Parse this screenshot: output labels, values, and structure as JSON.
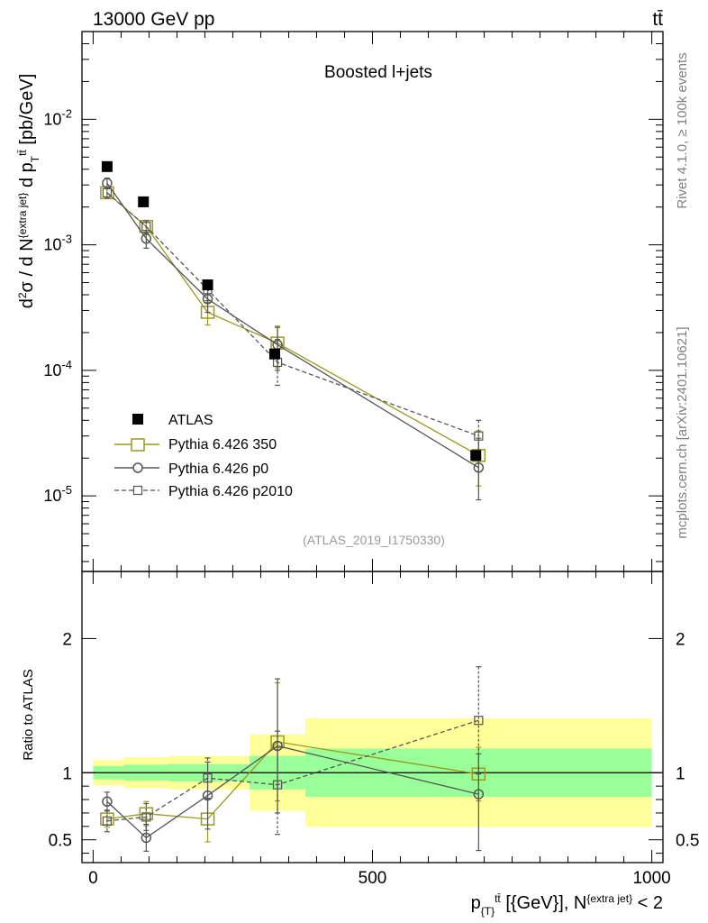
{
  "header": {
    "left": "13000 GeV pp",
    "right": "tt̄"
  },
  "side_labels": {
    "rivet": "Rivet 4.1.0, ≥ 100k events",
    "mcplots": "mcplots.cern.ch [arXiv:2401.10621]"
  },
  "chart_data": [
    {
      "type": "scatter",
      "panel": "main",
      "title": "Boosted l+jets",
      "watermark": "(ATLAS_2019_I1750330)",
      "xlabel": "p_{T}^{t̄t} [{GeV}], N^{extra jet} < 2",
      "ylabel": "d²σ / d N^{extra jet} d p_T^{t̄t} [pb/GeV]",
      "yscale": "log",
      "xlim": [
        -20,
        1020
      ],
      "ylim": [
        2.5e-06,
        0.05
      ],
      "y_ticks": [
        {
          "value": 0.01,
          "base": "10",
          "exp": "-2"
        },
        {
          "value": 0.001,
          "base": "10",
          "exp": "-3"
        },
        {
          "value": 0.0001,
          "base": "10",
          "exp": "-4"
        },
        {
          "value": 1e-05,
          "base": "10",
          "exp": "-5"
        }
      ],
      "legend_position": "lower-left",
      "series": [
        {
          "name": "ATLAS",
          "color": "#000000",
          "marker": "filled-square",
          "line": "none",
          "x": [
            25,
            90,
            205,
            325,
            685
          ],
          "y": [
            0.0042,
            0.0022,
            0.00048,
            0.000135,
            2.1e-05
          ],
          "err_up": [
            0,
            0,
            0,
            0,
            0
          ],
          "err_down": [
            0,
            0,
            0,
            0,
            0
          ]
        },
        {
          "name": "Pythia 6.426 350",
          "color": "#9a9a1e",
          "marker": "open-square",
          "line": "solid",
          "x": [
            25,
            95,
            205,
            330,
            690
          ],
          "y": [
            0.0026,
            0.0014,
            0.00029,
            0.000165,
            2.1e-05
          ],
          "err_up": [
            0.0002,
            0.00017,
            6e-05,
            6e-05,
            1.2e-05
          ],
          "err_down": [
            0.0002,
            0.00017,
            6e-05,
            6e-05,
            9e-06
          ]
        },
        {
          "name": "Pythia 6.426 p0",
          "color": "#555555",
          "marker": "open-circle",
          "line": "solid",
          "x": [
            25,
            95,
            205,
            330,
            690
          ],
          "y": [
            0.0031,
            0.00112,
            0.00037,
            0.00016,
            1.68e-05
          ],
          "err_up": [
            0.0003,
            0.00018,
            8e-05,
            6e-05,
            1.2e-05
          ],
          "err_down": [
            0.0003,
            0.00018,
            8e-05,
            6e-05,
            7.5e-06
          ]
        },
        {
          "name": "Pythia 6.426 p2010",
          "color": "#555555",
          "marker": "open-square-small",
          "line": "dashed",
          "x": [
            25,
            95,
            205,
            330,
            690
          ],
          "y": [
            0.0026,
            0.0014,
            0.00044,
            0.000116,
            3e-05
          ],
          "err_up": [
            0.00025,
            0.00015,
            8e-05,
            6e-05,
            1e-05
          ],
          "err_down": [
            0.00025,
            0.00015,
            8e-05,
            4e-05,
            1e-05
          ]
        }
      ]
    },
    {
      "type": "scatter",
      "panel": "ratio",
      "ylabel": "Ratio to ATLAS",
      "xlim": [
        -20,
        1020
      ],
      "ylim": [
        0.33,
        2.5
      ],
      "x_ticks": [
        0,
        500,
        1000
      ],
      "y_ticks": [
        0.5,
        1,
        2
      ],
      "reference_line": 1,
      "bands": [
        {
          "x0": 0,
          "x1": 55,
          "green": [
            0.95,
            1.05
          ],
          "yellow": [
            0.905,
            1.095
          ]
        },
        {
          "x0": 55,
          "x1": 135,
          "green": [
            0.94,
            1.06
          ],
          "yellow": [
            0.885,
            1.115
          ]
        },
        {
          "x0": 135,
          "x1": 280,
          "green": [
            0.935,
            1.065
          ],
          "yellow": [
            0.875,
            1.125
          ]
        },
        {
          "x0": 280,
          "x1": 380,
          "green": [
            0.875,
            1.125
          ],
          "yellow": [
            0.715,
            1.285
          ]
        },
        {
          "x0": 380,
          "x1": 1000,
          "green": [
            0.82,
            1.18
          ],
          "yellow": [
            0.595,
            1.405
          ]
        }
      ],
      "series": [
        {
          "name": "Pythia 6.426 350",
          "color": "#9a9a1e",
          "marker": "open-square",
          "line": "solid",
          "x": [
            25,
            95,
            205,
            330,
            690
          ],
          "y": [
            0.655,
            0.695,
            0.655,
            1.23,
            0.99
          ],
          "err_up": [
            0.06,
            0.09,
            0.15,
            0.44,
            0.2
          ],
          "err_down": [
            0.06,
            0.09,
            0.17,
            0.44,
            0.2
          ]
        },
        {
          "name": "Pythia 6.426 p0",
          "color": "#555555",
          "marker": "open-circle",
          "line": "solid",
          "x": [
            25,
            95,
            205,
            330,
            690
          ],
          "y": [
            0.785,
            0.515,
            0.83,
            1.2,
            0.84
          ],
          "err_up": [
            0.07,
            0.1,
            0.25,
            0.5,
            0.3
          ],
          "err_down": [
            0.07,
            0.1,
            0.25,
            0.5,
            0.42
          ]
        },
        {
          "name": "Pythia 6.426 p2010",
          "color": "#555555",
          "marker": "open-square-small",
          "line": "dashed",
          "x": [
            25,
            95,
            205,
            330,
            690
          ],
          "y": [
            0.64,
            0.67,
            0.96,
            0.91,
            1.39
          ],
          "err_up": [
            0.08,
            0.1,
            0.15,
            0.4,
            0.4
          ],
          "err_down": [
            0.08,
            0.1,
            0.15,
            0.37,
            0.4
          ]
        }
      ]
    }
  ]
}
